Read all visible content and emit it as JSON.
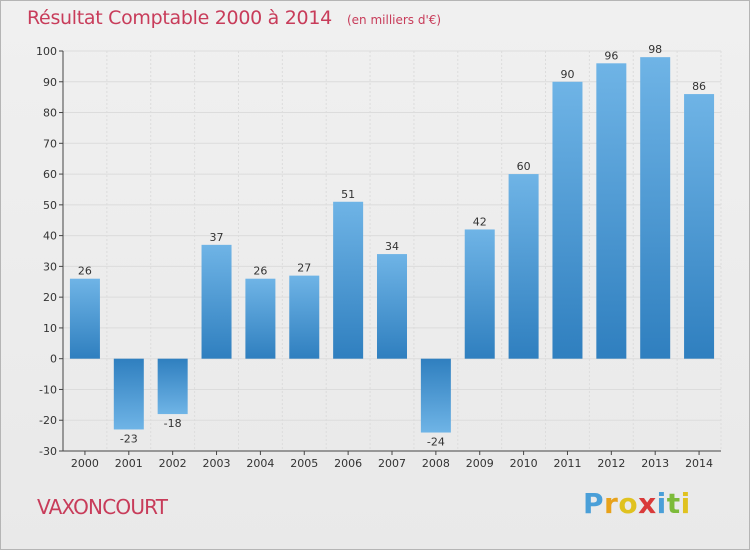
{
  "header": {
    "title": "Résultat Comptable 2000 à 2014",
    "subtitle": "(en milliers d'€)"
  },
  "footer": {
    "town": "VAXONCOURT",
    "logo_letters": [
      "P",
      "r",
      "o",
      "x",
      "i",
      "t",
      "i"
    ],
    "logo_colors": [
      "#4a9fd8",
      "#e8a21a",
      "#e0c21f",
      "#d93a3a",
      "#4a9fd8",
      "#7dbb3a",
      "#e0c21f"
    ]
  },
  "colors": {
    "bar_top": "#6fb4e6",
    "bar_bottom": "#2f7fbf",
    "title": "#c83c5a",
    "grid": "#dcdcdc",
    "axis": "#444444"
  },
  "chart_data": {
    "type": "bar",
    "title": "Résultat Comptable 2000 à 2014",
    "subtitle": "(en milliers d'€)",
    "xlabel": "",
    "ylabel": "",
    "ylim": [
      -30,
      100
    ],
    "ytick_step": 10,
    "categories": [
      "2000",
      "2001",
      "2002",
      "2003",
      "2004",
      "2005",
      "2006",
      "2007",
      "2008",
      "2009",
      "2010",
      "2011",
      "2012",
      "2013",
      "2014"
    ],
    "values": [
      26,
      -23,
      -18,
      37,
      26,
      27,
      51,
      34,
      -24,
      42,
      60,
      90,
      96,
      98,
      86
    ],
    "grid": true,
    "legend": "none"
  }
}
